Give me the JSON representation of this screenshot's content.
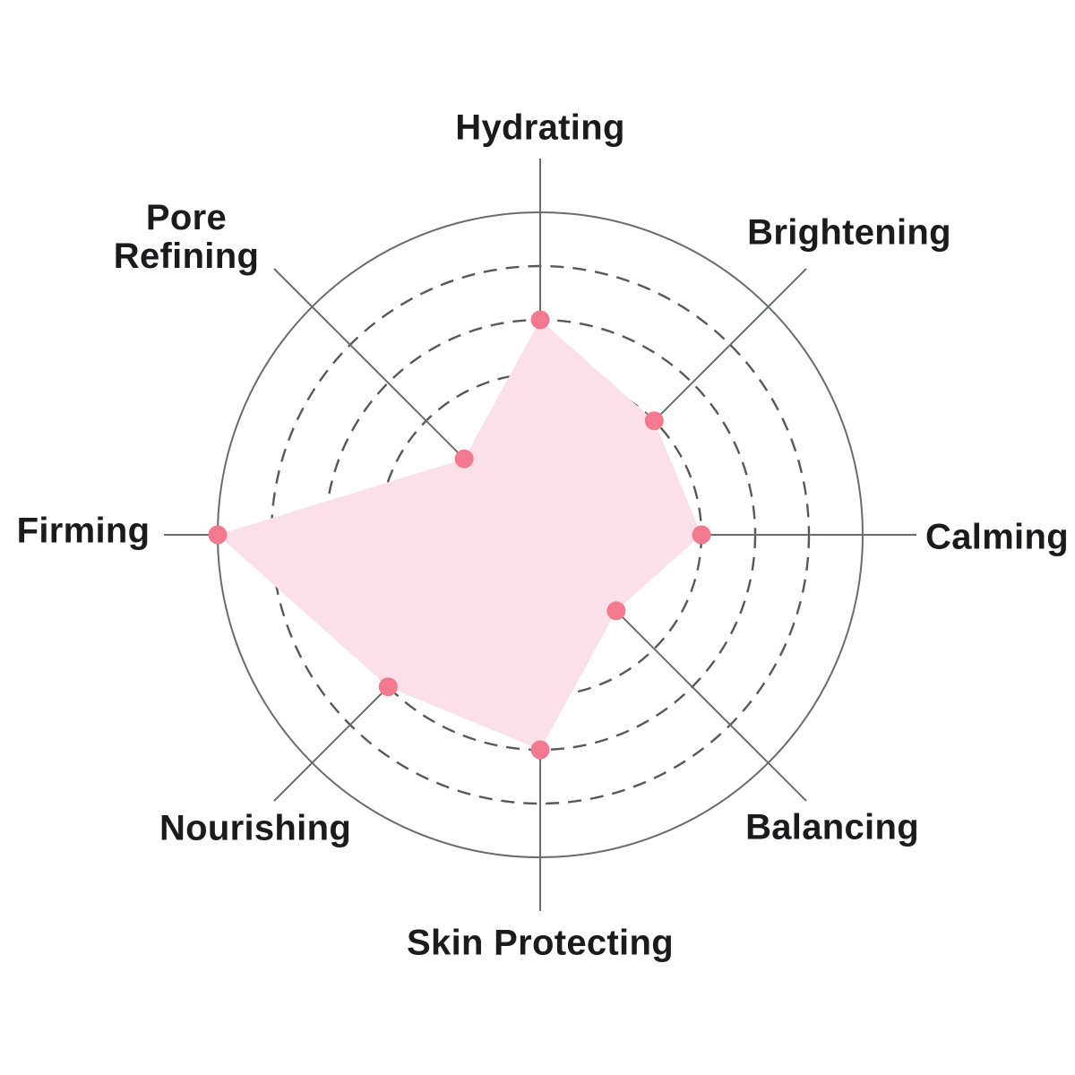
{
  "page": {
    "background": "#ffffff"
  },
  "chart_data": {
    "type": "radar",
    "title": "",
    "categories": [
      "Hydrating",
      "Brightening",
      "Calming",
      "Balancing",
      "Skin Protecting",
      "Nourishing",
      "Firming",
      "Pore Refining"
    ],
    "values": [
      4,
      3,
      3,
      2,
      4,
      4,
      6,
      2
    ],
    "max": 6,
    "ring_levels_dashed": [
      2,
      3,
      4,
      5
    ],
    "ring_level_solid": 6,
    "start_angle_deg": -90,
    "direction": "clockwise",
    "grid": "circular",
    "legend": "none",
    "colors": {
      "fill": "#FCE0E9",
      "dot": "#F2798E",
      "axis_line": "#6A6B6D",
      "ring_solid": "#6A6B6D",
      "ring_dashed": "#58585A",
      "label": "#1B1B1D"
    }
  }
}
